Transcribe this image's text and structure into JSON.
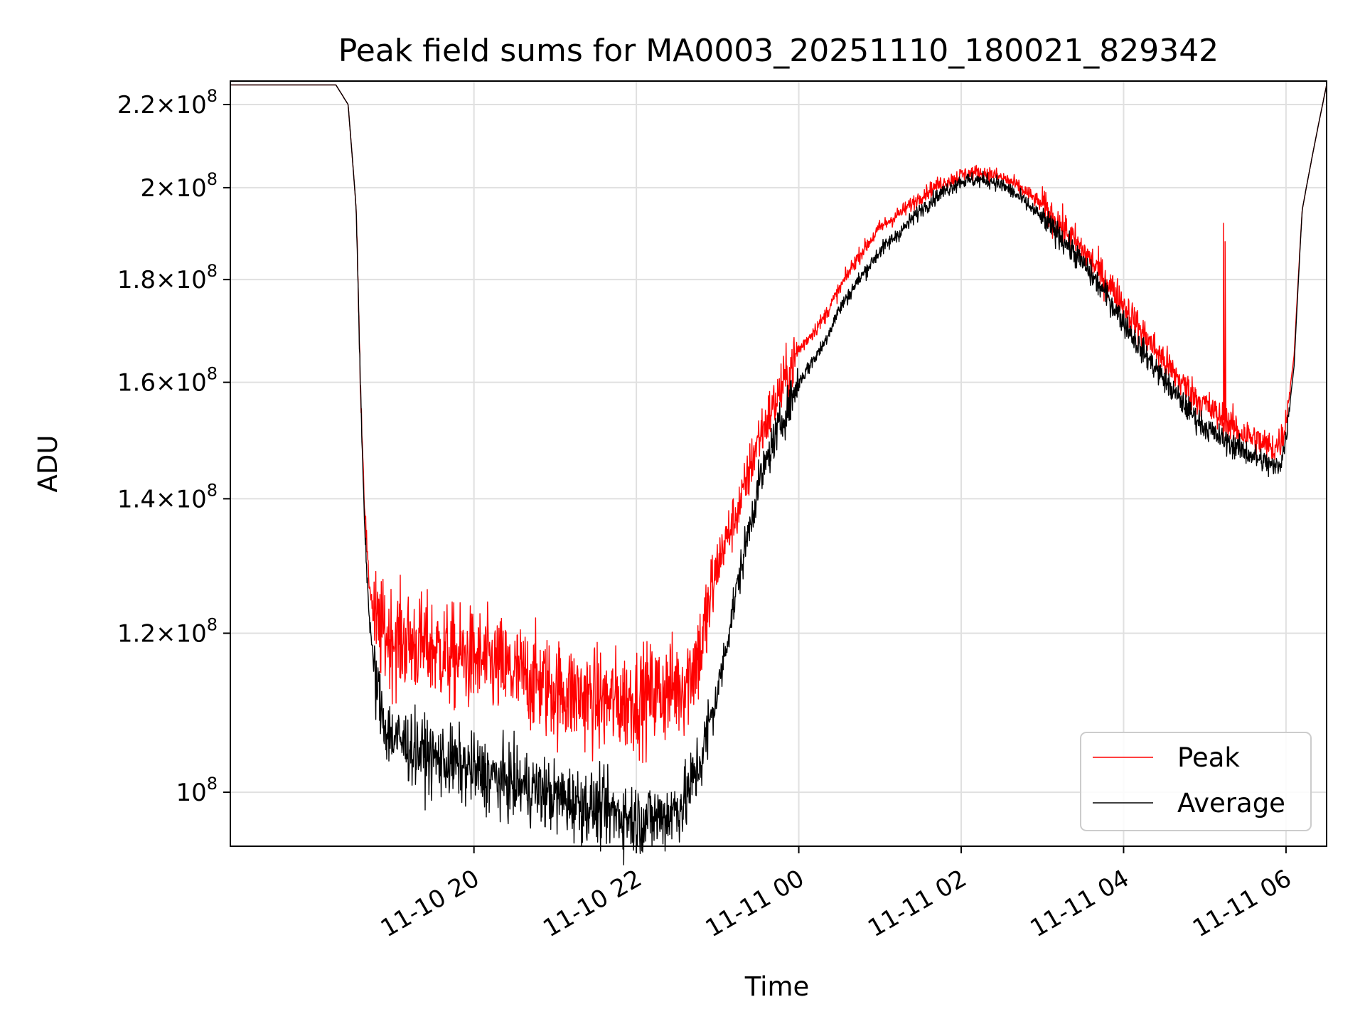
{
  "chart_data": {
    "type": "line",
    "title": "Peak field sums for MA0003_20251110_180021_829342",
    "xlabel": "Time",
    "ylabel": "ADU",
    "yscale": "log",
    "grid": true,
    "legend_position": "bottom-right",
    "x_unit": "hours since 11-10 00:00",
    "xlim": [
      17.0,
      30.5
    ],
    "ylim": [
      94000000.0,
      226000000.0
    ],
    "x_ticks": [
      {
        "value": 20,
        "label": "11-10 20"
      },
      {
        "value": 22,
        "label": "11-10 22"
      },
      {
        "value": 24,
        "label": "11-11 00"
      },
      {
        "value": 26,
        "label": "11-11 02"
      },
      {
        "value": 28,
        "label": "11-11 04"
      },
      {
        "value": 30,
        "label": "11-11 06"
      }
    ],
    "y_ticks": [
      {
        "value": 100000000,
        "mantissa": "",
        "exponent": "8"
      },
      {
        "value": 120000000,
        "mantissa": "1.2",
        "exponent": "8"
      },
      {
        "value": 140000000,
        "mantissa": "1.4",
        "exponent": "8"
      },
      {
        "value": 160000000,
        "mantissa": "1.6",
        "exponent": "8"
      },
      {
        "value": 180000000,
        "mantissa": "1.8",
        "exponent": "8"
      },
      {
        "value": 200000000,
        "mantissa": "2",
        "exponent": "8"
      },
      {
        "value": 220000000,
        "mantissa": "2.2",
        "exponent": "8"
      }
    ],
    "series": [
      {
        "name": "Peak",
        "color": "#ff0000",
        "x": [
          18.0,
          18.3,
          18.45,
          18.55,
          18.6,
          18.65,
          18.7,
          18.75,
          18.8,
          18.9,
          19.0,
          19.3,
          19.5,
          19.7,
          20.0,
          20.3,
          20.5,
          20.7,
          21.0,
          21.2,
          21.4,
          21.6,
          21.8,
          22.0,
          22.2,
          22.4,
          22.6,
          22.8,
          23.0,
          23.3,
          23.5,
          23.7,
          24.0,
          24.3,
          24.5,
          24.7,
          25.0,
          25.3,
          25.5,
          25.7,
          25.9,
          26.0,
          26.2,
          26.4,
          26.6,
          26.8,
          27.0,
          27.2,
          27.4,
          27.6,
          27.8,
          28.0,
          28.2,
          28.4,
          28.6,
          28.8,
          29.0,
          29.2,
          29.4,
          29.6,
          29.8,
          29.85,
          29.9,
          29.95,
          30.0,
          30.1,
          30.2,
          30.5
        ],
        "y": [
          225000000,
          225000000,
          220000000,
          195000000,
          160000000,
          140000000,
          128000000,
          124000000,
          121000000,
          120000000,
          119500000,
          118500000,
          118000000,
          117000000,
          116500000,
          115500000,
          114500000,
          114000000,
          112500000,
          112000000,
          111500000,
          111000000,
          111000000,
          111500000,
          112000000,
          112500000,
          113500000,
          118000000,
          130000000,
          140000000,
          150000000,
          156000000,
          166000000,
          172000000,
          178000000,
          184000000,
          191000000,
          195000000,
          198000000,
          200500000,
          202000000,
          203000000,
          203500000,
          203000000,
          201500000,
          199000000,
          196000000,
          192000000,
          188000000,
          184000000,
          179500000,
          175000000,
          170000000,
          166000000,
          162000000,
          158500000,
          156000000,
          153500000,
          151500000,
          150000000,
          148500000,
          148500000,
          149000000,
          150000000,
          153000000,
          165000000,
          195000000,
          225000000
        ],
        "spikes": [
          {
            "x": 29.23,
            "y": 192000000
          },
          {
            "x": 29.25,
            "y": 188000000
          }
        ]
      },
      {
        "name": "Average",
        "color": "#000000",
        "x": [
          18.0,
          18.3,
          18.45,
          18.55,
          18.6,
          18.65,
          18.7,
          18.75,
          18.8,
          18.9,
          19.0,
          19.3,
          19.5,
          19.7,
          20.0,
          20.3,
          20.5,
          20.7,
          21.0,
          21.2,
          21.4,
          21.6,
          21.8,
          22.0,
          22.2,
          22.4,
          22.6,
          22.8,
          23.0,
          23.3,
          23.5,
          23.7,
          24.0,
          24.3,
          24.5,
          24.7,
          25.0,
          25.3,
          25.5,
          25.7,
          25.9,
          26.0,
          26.2,
          26.4,
          26.6,
          26.8,
          27.0,
          27.2,
          27.4,
          27.6,
          27.8,
          28.0,
          28.2,
          28.4,
          28.6,
          28.8,
          29.0,
          29.2,
          29.4,
          29.6,
          29.8,
          29.85,
          29.9,
          29.95,
          30.0,
          30.1,
          30.2,
          30.5
        ],
        "y": [
          225000000,
          225000000,
          220000000,
          195000000,
          160000000,
          137000000,
          124000000,
          117000000,
          113000000,
          108000000,
          106500000,
          105000000,
          104000000,
          103500000,
          102500000,
          101500000,
          101000000,
          100500000,
          99500000,
          99000000,
          98500000,
          98000000,
          97500000,
          97000000,
          97000000,
          97500000,
          99000000,
          104000000,
          112000000,
          130000000,
          142000000,
          150000000,
          160000000,
          167000000,
          174000000,
          179000000,
          186000000,
          191000000,
          195000000,
          198000000,
          200500000,
          201500000,
          201800000,
          201500000,
          199500000,
          196500000,
          193000000,
          189500000,
          185500000,
          181000000,
          176500000,
          171500000,
          166500000,
          162500000,
          158500000,
          155000000,
          152000000,
          150000000,
          148500000,
          147000000,
          145500000,
          145000000,
          145500000,
          146500000,
          150000000,
          163000000,
          195000000,
          225000000
        ]
      }
    ]
  }
}
